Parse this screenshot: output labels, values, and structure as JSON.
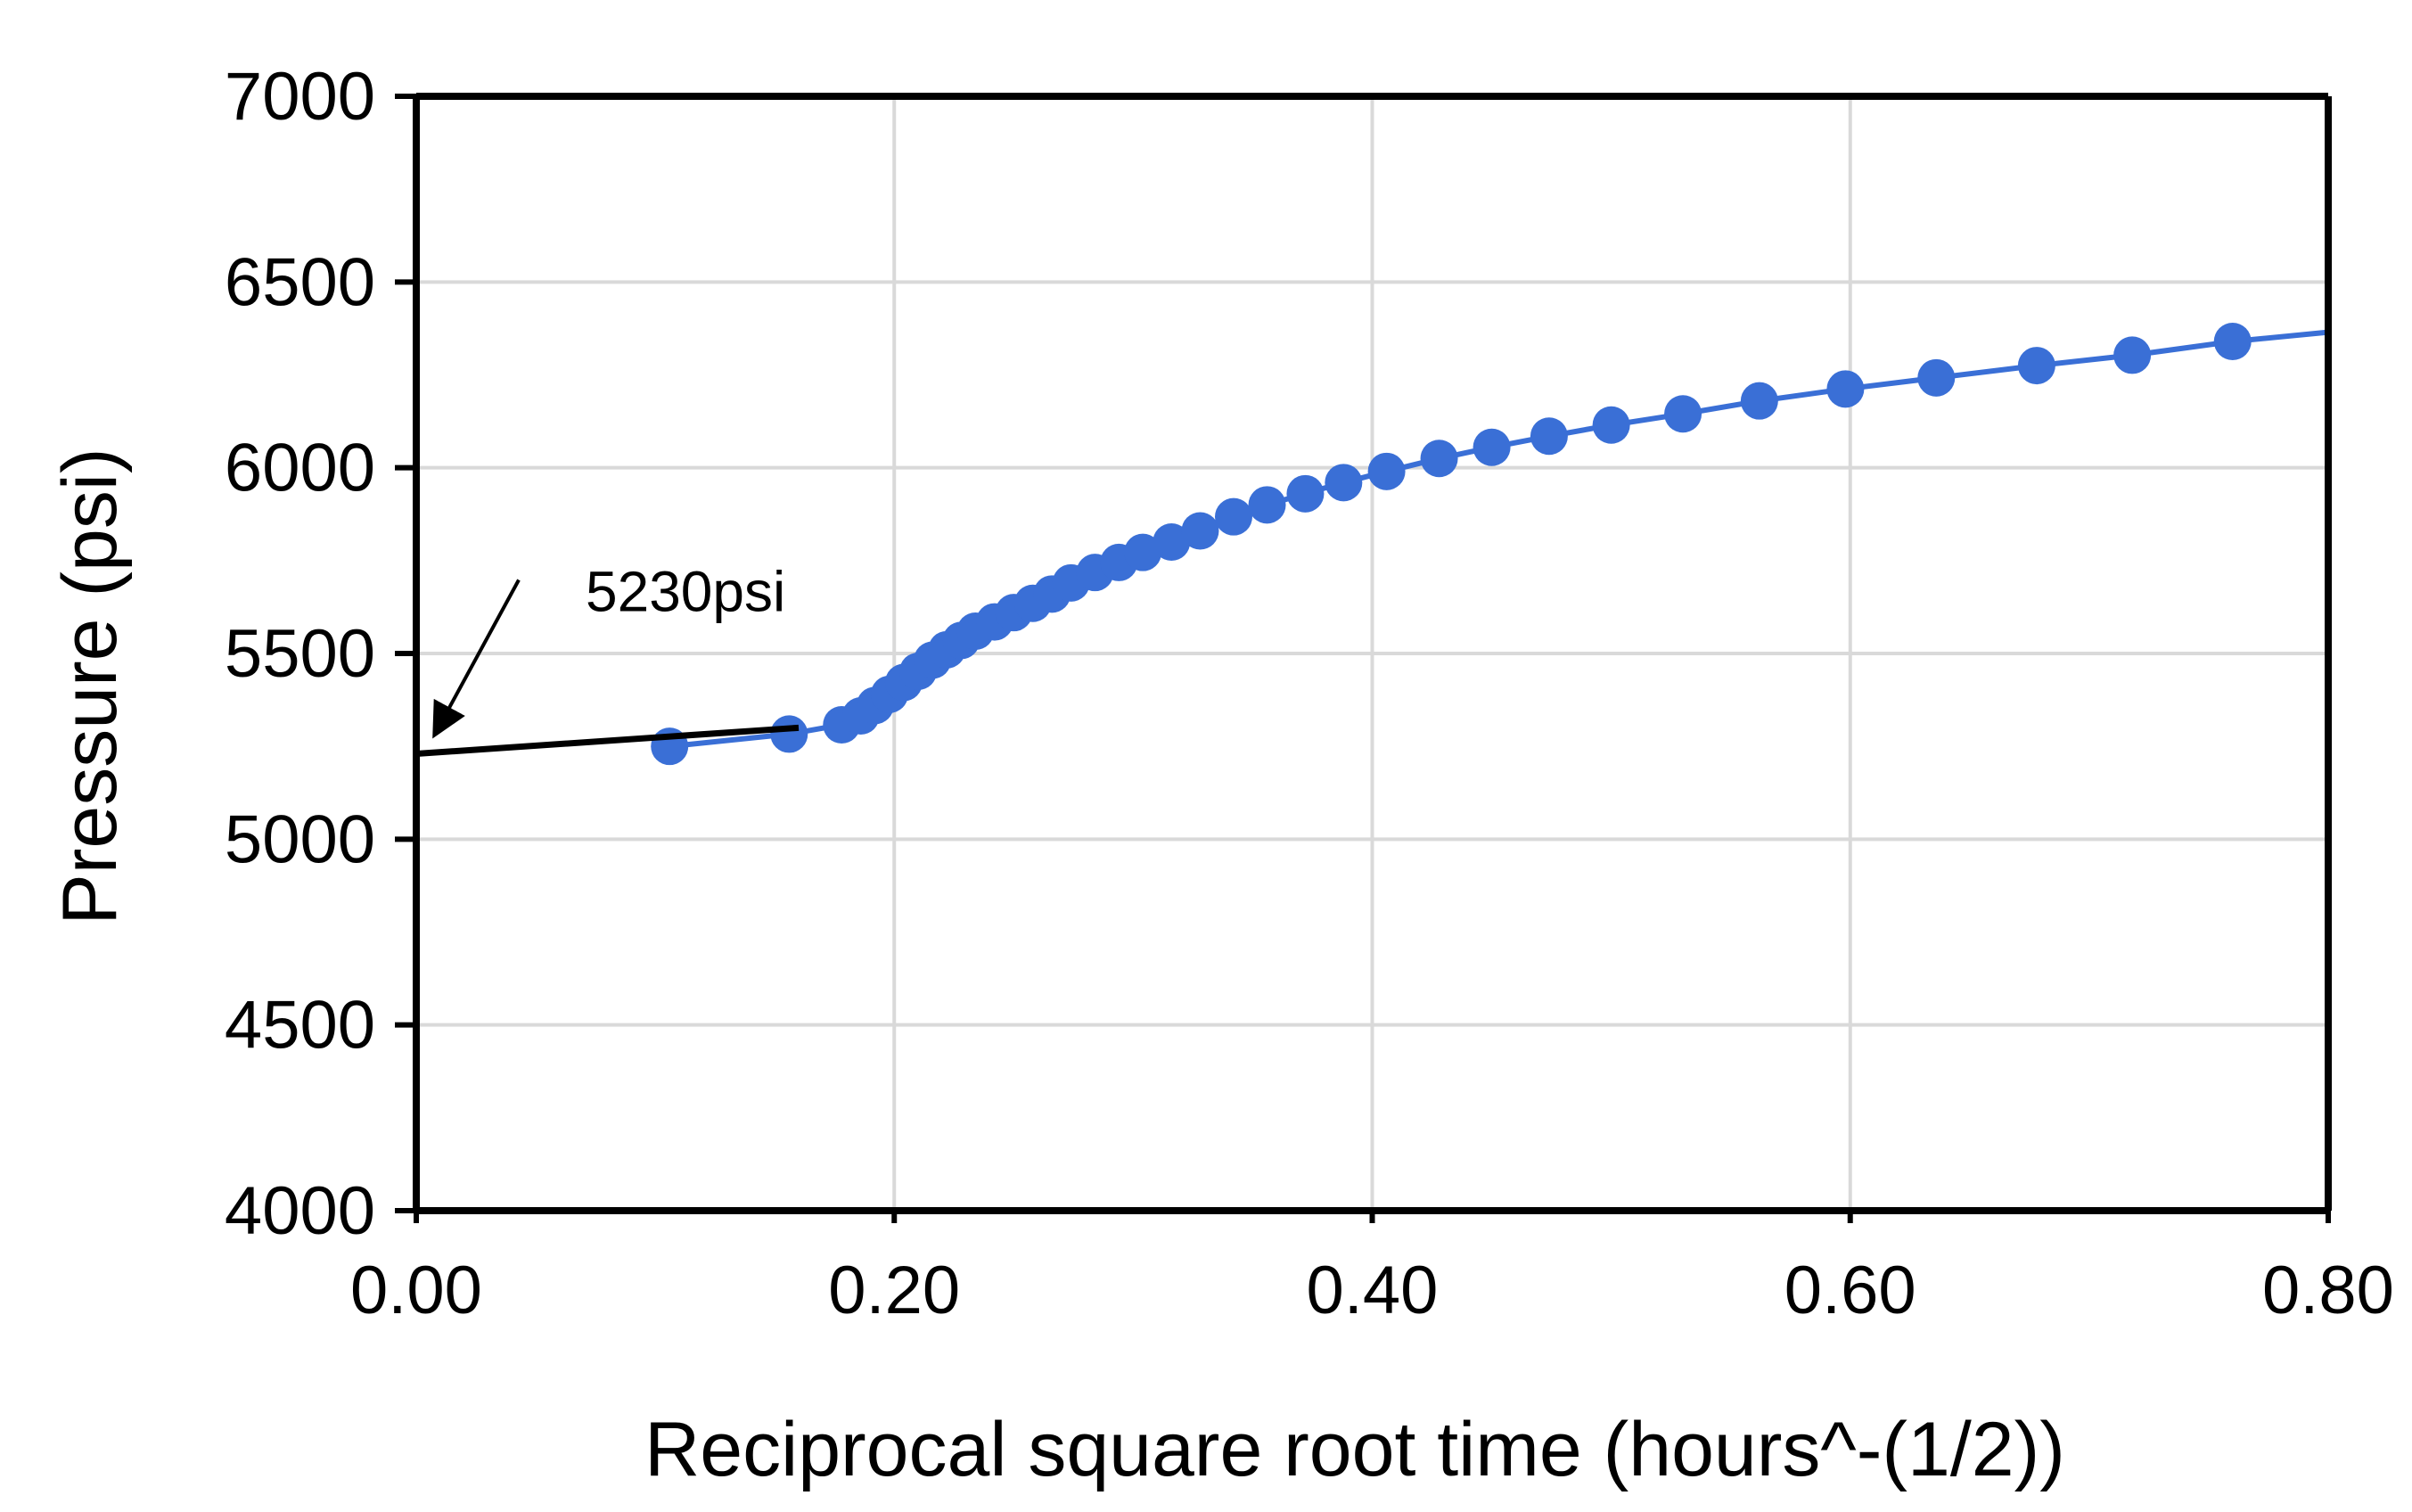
{
  "chart_data": {
    "type": "scatter",
    "title": "",
    "xlabel": "Reciprocal  square root time (hours^-(1/2))",
    "ylabel": "Pressure (psi)",
    "xlim": [
      0,
      0.8
    ],
    "ylim": [
      4000,
      7000
    ],
    "x_ticks": [
      0.0,
      0.2,
      0.4,
      0.6,
      0.8
    ],
    "x_tick_labels": [
      "0.00",
      "0.20",
      "0.40",
      "0.60",
      "0.80"
    ],
    "y_ticks": [
      4000,
      4500,
      5000,
      5500,
      6000,
      6500,
      7000
    ],
    "y_tick_labels": [
      "4000",
      "4500",
      "5000",
      "5500",
      "6000",
      "6500",
      "7000"
    ],
    "grid": true,
    "colors": {
      "series": "#3a6fd6",
      "trend_line": "#000000",
      "grid": "#d9d9d9",
      "axes": "#000000"
    },
    "series": [
      {
        "marker": "circle",
        "connected": true,
        "points": [
          [
            0.106,
            5250
          ],
          [
            0.156,
            5283
          ],
          [
            0.178,
            5308
          ],
          [
            0.186,
            5332
          ],
          [
            0.192,
            5360
          ],
          [
            0.198,
            5390
          ],
          [
            0.204,
            5422
          ],
          [
            0.21,
            5452
          ],
          [
            0.216,
            5482
          ],
          [
            0.222,
            5510
          ],
          [
            0.228,
            5535
          ],
          [
            0.234,
            5560
          ],
          [
            0.242,
            5585
          ],
          [
            0.25,
            5610
          ],
          [
            0.258,
            5635
          ],
          [
            0.266,
            5660
          ],
          [
            0.274,
            5690
          ],
          [
            0.284,
            5718
          ],
          [
            0.294,
            5745
          ],
          [
            0.304,
            5772
          ],
          [
            0.316,
            5800
          ],
          [
            0.328,
            5830
          ],
          [
            0.342,
            5868
          ],
          [
            0.356,
            5900
          ],
          [
            0.372,
            5930
          ],
          [
            0.388,
            5960
          ],
          [
            0.406,
            5990
          ],
          [
            0.428,
            6025
          ],
          [
            0.45,
            6055
          ],
          [
            0.474,
            6085
          ],
          [
            0.5,
            6115
          ],
          [
            0.53,
            6145
          ],
          [
            0.562,
            6180
          ],
          [
            0.598,
            6212
          ],
          [
            0.636,
            6242
          ],
          [
            0.678,
            6275
          ],
          [
            0.718,
            6303
          ],
          [
            0.76,
            6340
          ]
        ],
        "line_end": [
          0.8,
          6365
        ]
      }
    ],
    "trend_line": {
      "x": [
        0.0,
        0.16
      ],
      "y": [
        5230,
        5300
      ]
    },
    "annotations": [
      {
        "text": "5230psi",
        "x": 0.0,
        "y": 5230,
        "arrow": true
      }
    ]
  }
}
